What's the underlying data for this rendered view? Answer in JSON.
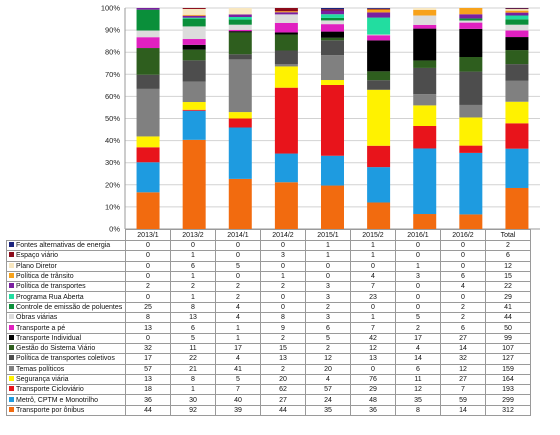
{
  "chart_data": {
    "type": "bar",
    "stacked": "percent",
    "categories": [
      "2013/1",
      "2013/2",
      "2014/1",
      "2014/2",
      "2015/1",
      "2015/2",
      "2016/1",
      "2016/2",
      "Total"
    ],
    "y_ticks": [
      "0%",
      "10%",
      "20%",
      "30%",
      "40%",
      "50%",
      "60%",
      "70%",
      "80%",
      "90%",
      "100%"
    ],
    "ylim": [
      0,
      100
    ],
    "grid": true,
    "legend": "table-below",
    "series": [
      {
        "name": "Transporte por ônibus",
        "color": "#F26B0F",
        "values": [
          44,
          92,
          39,
          44,
          35,
          36,
          8,
          14,
          312
        ]
      },
      {
        "name": "Metrô, CPTM e Monotrilho",
        "color": "#1E9BE0",
        "values": [
          36,
          30,
          40,
          27,
          24,
          48,
          35,
          59,
          299
        ]
      },
      {
        "name": "Transporte Cicloviário",
        "color": "#E8141B",
        "values": [
          18,
          1,
          7,
          62,
          57,
          29,
          12,
          7,
          193
        ]
      },
      {
        "name": "Segurança viária",
        "color": "#FFF200",
        "values": [
          13,
          8,
          5,
          20,
          4,
          76,
          11,
          27,
          164
        ]
      },
      {
        "name": "Temas políticos",
        "color": "#808080",
        "values": [
          57,
          21,
          41,
          2,
          20,
          0,
          6,
          12,
          159
        ]
      },
      {
        "name": "Política de transportes coletivos",
        "color": "#4D4D4D",
        "values": [
          17,
          22,
          4,
          13,
          12,
          13,
          14,
          32,
          127
        ]
      },
      {
        "name": "Gestão do Sistema Viário",
        "color": "#2E5E1E",
        "values": [
          32,
          11,
          17,
          15,
          2,
          12,
          4,
          14,
          107
        ]
      },
      {
        "name": "Transporte Individual",
        "color": "#000000",
        "values": [
          0,
          5,
          1,
          2,
          5,
          42,
          17,
          27,
          99
        ]
      },
      {
        "name": "Transporte a pé",
        "color": "#E020C0",
        "values": [
          13,
          6,
          1,
          9,
          6,
          7,
          2,
          6,
          50
        ]
      },
      {
        "name": "Obras viárias",
        "color": "#DCDCDC",
        "values": [
          8,
          13,
          4,
          8,
          3,
          1,
          5,
          2,
          44
        ]
      },
      {
        "name": "Controle de emissão de poluentes",
        "color": "#0A8F3A",
        "values": [
          25,
          8,
          4,
          0,
          2,
          0,
          0,
          2,
          41
        ]
      },
      {
        "name": "Programa Rua Aberta",
        "color": "#22DDA0",
        "values": [
          0,
          1,
          2,
          0,
          3,
          23,
          0,
          0,
          29
        ]
      },
      {
        "name": "Política de transportes",
        "color": "#7A1FA0",
        "values": [
          2,
          2,
          2,
          2,
          3,
          7,
          0,
          4,
          22
        ]
      },
      {
        "name": "Política de trânsito",
        "color": "#F7A21B",
        "values": [
          0,
          1,
          0,
          1,
          0,
          4,
          3,
          6,
          15
        ]
      },
      {
        "name": "Plano Diretor",
        "color": "#F8E7C0",
        "values": [
          0,
          6,
          5,
          0,
          0,
          0,
          1,
          0,
          12
        ]
      },
      {
        "name": "Espaço viário",
        "color": "#8B0A1A",
        "values": [
          0,
          1,
          0,
          3,
          1,
          1,
          0,
          0,
          6
        ]
      },
      {
        "name": "Fontes alternativas de energia",
        "color": "#1A237E",
        "values": [
          0,
          0,
          0,
          0,
          1,
          1,
          0,
          0,
          2
        ]
      }
    ]
  }
}
